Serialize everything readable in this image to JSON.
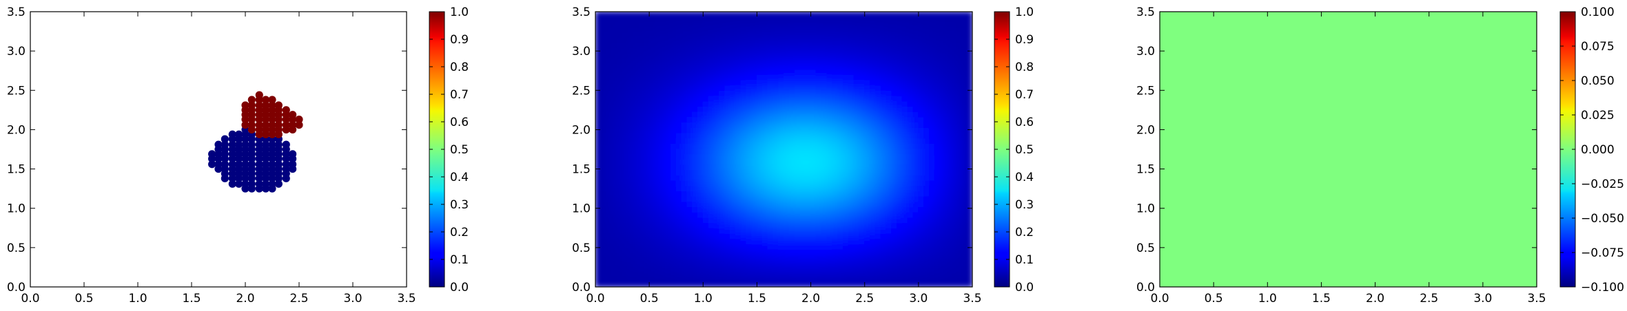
{
  "chart_data": [
    {
      "type": "scatter",
      "title": "",
      "xlabel": "",
      "ylabel": "",
      "xlim": [
        0,
        3.5
      ],
      "ylim": [
        0,
        3.5
      ],
      "xticks": [
        "0.0",
        "0.5",
        "1.0",
        "1.5",
        "2.0",
        "2.5",
        "3.0",
        "3.5"
      ],
      "yticks": [
        "0.0",
        "0.5",
        "1.0",
        "1.5",
        "2.0",
        "2.5",
        "3.0",
        "3.5"
      ],
      "grid": false,
      "colormap": "jet",
      "series": [
        {
          "value": 0.0,
          "color": "#00007f",
          "points": [
            [
              1.69,
              1.56
            ],
            [
              1.69,
              1.63
            ],
            [
              1.69,
              1.69
            ],
            [
              1.75,
              1.5
            ],
            [
              1.75,
              1.56
            ],
            [
              1.75,
              1.63
            ],
            [
              1.75,
              1.69
            ],
            [
              1.75,
              1.75
            ],
            [
              1.75,
              1.81
            ],
            [
              1.81,
              1.38
            ],
            [
              1.81,
              1.44
            ],
            [
              1.81,
              1.5
            ],
            [
              1.81,
              1.56
            ],
            [
              1.81,
              1.63
            ],
            [
              1.81,
              1.69
            ],
            [
              1.81,
              1.75
            ],
            [
              1.81,
              1.81
            ],
            [
              1.81,
              1.88
            ],
            [
              1.88,
              1.31
            ],
            [
              1.88,
              1.38
            ],
            [
              1.88,
              1.44
            ],
            [
              1.88,
              1.5
            ],
            [
              1.88,
              1.56
            ],
            [
              1.88,
              1.63
            ],
            [
              1.88,
              1.69
            ],
            [
              1.88,
              1.75
            ],
            [
              1.88,
              1.81
            ],
            [
              1.88,
              1.88
            ],
            [
              1.88,
              1.94
            ],
            [
              1.94,
              1.31
            ],
            [
              1.94,
              1.38
            ],
            [
              1.94,
              1.44
            ],
            [
              1.94,
              1.5
            ],
            [
              1.94,
              1.56
            ],
            [
              1.94,
              1.63
            ],
            [
              1.94,
              1.69
            ],
            [
              1.94,
              1.75
            ],
            [
              1.94,
              1.81
            ],
            [
              1.94,
              1.88
            ],
            [
              1.94,
              1.94
            ],
            [
              2.0,
              1.25
            ],
            [
              2.0,
              1.31
            ],
            [
              2.0,
              1.38
            ],
            [
              2.0,
              1.44
            ],
            [
              2.0,
              1.5
            ],
            [
              2.0,
              1.56
            ],
            [
              2.0,
              1.63
            ],
            [
              2.0,
              1.69
            ],
            [
              2.0,
              1.75
            ],
            [
              2.0,
              1.81
            ],
            [
              2.0,
              1.88
            ],
            [
              2.0,
              1.94
            ],
            [
              2.0,
              2.0
            ],
            [
              2.06,
              1.25
            ],
            [
              2.06,
              1.31
            ],
            [
              2.06,
              1.38
            ],
            [
              2.06,
              1.44
            ],
            [
              2.06,
              1.5
            ],
            [
              2.06,
              1.56
            ],
            [
              2.06,
              1.63
            ],
            [
              2.06,
              1.69
            ],
            [
              2.06,
              1.75
            ],
            [
              2.06,
              1.81
            ],
            [
              2.06,
              1.88
            ],
            [
              2.06,
              1.94
            ],
            [
              2.13,
              1.25
            ],
            [
              2.13,
              1.31
            ],
            [
              2.13,
              1.38
            ],
            [
              2.13,
              1.44
            ],
            [
              2.13,
              1.5
            ],
            [
              2.13,
              1.56
            ],
            [
              2.13,
              1.63
            ],
            [
              2.13,
              1.69
            ],
            [
              2.13,
              1.75
            ],
            [
              2.13,
              1.81
            ],
            [
              2.13,
              1.88
            ],
            [
              2.19,
              1.25
            ],
            [
              2.19,
              1.31
            ],
            [
              2.19,
              1.38
            ],
            [
              2.19,
              1.44
            ],
            [
              2.19,
              1.5
            ],
            [
              2.19,
              1.56
            ],
            [
              2.19,
              1.63
            ],
            [
              2.19,
              1.69
            ],
            [
              2.19,
              1.75
            ],
            [
              2.19,
              1.81
            ],
            [
              2.19,
              1.88
            ],
            [
              2.25,
              1.25
            ],
            [
              2.25,
              1.31
            ],
            [
              2.25,
              1.38
            ],
            [
              2.25,
              1.44
            ],
            [
              2.25,
              1.5
            ],
            [
              2.25,
              1.56
            ],
            [
              2.25,
              1.63
            ],
            [
              2.25,
              1.69
            ],
            [
              2.25,
              1.75
            ],
            [
              2.25,
              1.81
            ],
            [
              2.25,
              1.88
            ],
            [
              2.31,
              1.31
            ],
            [
              2.31,
              1.38
            ],
            [
              2.31,
              1.44
            ],
            [
              2.31,
              1.5
            ],
            [
              2.31,
              1.56
            ],
            [
              2.31,
              1.63
            ],
            [
              2.31,
              1.69
            ],
            [
              2.31,
              1.75
            ],
            [
              2.31,
              1.81
            ],
            [
              2.31,
              1.88
            ],
            [
              2.38,
              1.38
            ],
            [
              2.38,
              1.44
            ],
            [
              2.38,
              1.5
            ],
            [
              2.38,
              1.56
            ],
            [
              2.38,
              1.63
            ],
            [
              2.38,
              1.69
            ],
            [
              2.38,
              1.75
            ],
            [
              2.38,
              1.81
            ],
            [
              2.44,
              1.5
            ],
            [
              2.44,
              1.56
            ],
            [
              2.44,
              1.63
            ],
            [
              2.44,
              1.69
            ]
          ]
        },
        {
          "value": 1.0,
          "color": "#7f0000",
          "points": [
            [
              2.0,
              2.06
            ],
            [
              2.0,
              2.13
            ],
            [
              2.0,
              2.19
            ],
            [
              2.0,
              2.25
            ],
            [
              2.0,
              2.31
            ],
            [
              2.06,
              2.0
            ],
            [
              2.06,
              2.06
            ],
            [
              2.06,
              2.13
            ],
            [
              2.06,
              2.19
            ],
            [
              2.06,
              2.25
            ],
            [
              2.06,
              2.31
            ],
            [
              2.06,
              2.38
            ],
            [
              2.13,
              1.94
            ],
            [
              2.13,
              2.0
            ],
            [
              2.13,
              2.06
            ],
            [
              2.13,
              2.13
            ],
            [
              2.13,
              2.19
            ],
            [
              2.13,
              2.25
            ],
            [
              2.13,
              2.31
            ],
            [
              2.13,
              2.38
            ],
            [
              2.13,
              2.44
            ],
            [
              2.19,
              1.94
            ],
            [
              2.19,
              2.0
            ],
            [
              2.19,
              2.06
            ],
            [
              2.19,
              2.13
            ],
            [
              2.19,
              2.19
            ],
            [
              2.19,
              2.25
            ],
            [
              2.19,
              2.31
            ],
            [
              2.19,
              2.38
            ],
            [
              2.25,
              1.94
            ],
            [
              2.25,
              2.0
            ],
            [
              2.25,
              2.06
            ],
            [
              2.25,
              2.13
            ],
            [
              2.25,
              2.19
            ],
            [
              2.25,
              2.25
            ],
            [
              2.25,
              2.31
            ],
            [
              2.25,
              2.38
            ],
            [
              2.31,
              1.94
            ],
            [
              2.31,
              2.0
            ],
            [
              2.31,
              2.06
            ],
            [
              2.31,
              2.13
            ],
            [
              2.31,
              2.19
            ],
            [
              2.31,
              2.25
            ],
            [
              2.31,
              2.31
            ],
            [
              2.38,
              2.0
            ],
            [
              2.38,
              2.06
            ],
            [
              2.38,
              2.13
            ],
            [
              2.38,
              2.19
            ],
            [
              2.38,
              2.25
            ],
            [
              2.44,
              2.0
            ],
            [
              2.44,
              2.06
            ],
            [
              2.44,
              2.13
            ],
            [
              2.44,
              2.19
            ],
            [
              2.5,
              2.06
            ],
            [
              2.5,
              2.13
            ]
          ]
        }
      ],
      "colorbar": {
        "range": [
          0.0,
          1.0
        ],
        "ticks": [
          "0.0",
          "0.1",
          "0.2",
          "0.3",
          "0.4",
          "0.5",
          "0.6",
          "0.7",
          "0.8",
          "0.9",
          "1.0"
        ]
      }
    },
    {
      "type": "heatmap",
      "title": "",
      "xlabel": "",
      "ylabel": "",
      "xlim": [
        0,
        3.5
      ],
      "ylim": [
        0,
        3.5
      ],
      "xticks": [
        "0.0",
        "0.5",
        "1.0",
        "1.5",
        "2.0",
        "2.5",
        "3.0",
        "3.5"
      ],
      "yticks": [
        "0.0",
        "0.5",
        "1.0",
        "1.5",
        "2.0",
        "2.5",
        "3.0",
        "3.5"
      ],
      "grid": false,
      "colormap": "jet",
      "field": {
        "peak_value": 0.35,
        "peak_center": [
          2.0,
          1.55
        ],
        "spread_x": 0.95,
        "spread_y": 0.85,
        "edge_value": 0.04
      },
      "colorbar": {
        "range": [
          0.0,
          1.0
        ],
        "ticks": [
          "0.0",
          "0.1",
          "0.2",
          "0.3",
          "0.4",
          "0.5",
          "0.6",
          "0.7",
          "0.8",
          "0.9",
          "1.0"
        ]
      }
    },
    {
      "type": "heatmap",
      "title": "",
      "xlabel": "",
      "ylabel": "",
      "xlim": [
        0,
        3.5
      ],
      "ylim": [
        0,
        3.5
      ],
      "xticks": [
        "0.0",
        "0.5",
        "1.0",
        "1.5",
        "2.0",
        "2.5",
        "3.0",
        "3.5"
      ],
      "yticks": [
        "0.0",
        "0.5",
        "1.0",
        "1.5",
        "2.0",
        "2.5",
        "3.0",
        "3.5"
      ],
      "grid": false,
      "colormap": "jet",
      "field": {
        "uniform_value": 0.0,
        "color": "#7fff7f"
      },
      "colorbar": {
        "range": [
          -0.1,
          0.1
        ],
        "ticks": [
          "−0.100",
          "−0.075",
          "−0.050",
          "−0.025",
          "0.000",
          "0.025",
          "0.050",
          "0.075",
          "0.100"
        ]
      }
    }
  ]
}
